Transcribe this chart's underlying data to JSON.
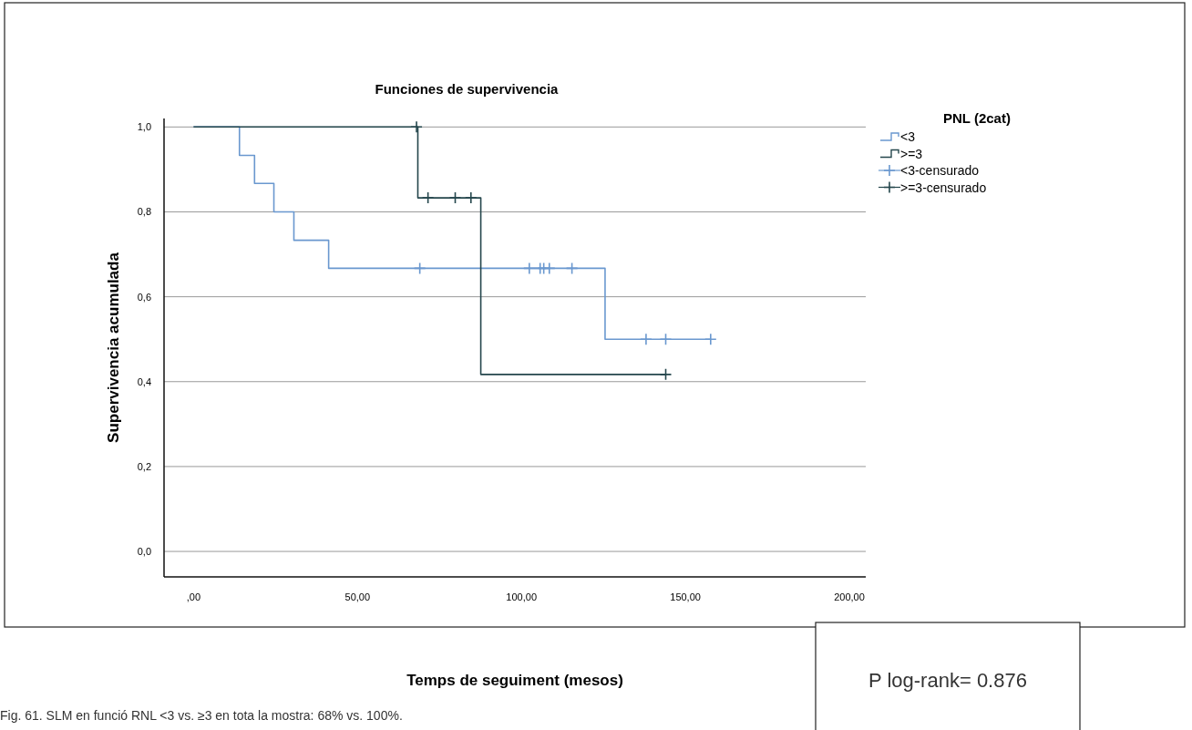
{
  "chart_data": {
    "type": "step",
    "title": "Funciones de supervivencia",
    "xlabel": "Temps de seguiment (mesos)",
    "ylabel": "Supervivencia acumulada",
    "legend_title": "PNL (2cat)",
    "annotations": [
      "Fig. 61. SLM en funció RNL <3 vs. ≥3 en tota la mostra: 68% vs. 100%.",
      "P log-rank= 0.876"
    ],
    "xlim": [
      -9,
      205
    ],
    "ylim": [
      -0.06,
      1.02
    ],
    "xticks": [
      {
        "value": 0,
        "label": ",00"
      },
      {
        "value": 50,
        "label": "50,00"
      },
      {
        "value": 100,
        "label": "100,00"
      },
      {
        "value": 150,
        "label": "150,00"
      },
      {
        "value": 200,
        "label": "200,00"
      }
    ],
    "yticks": [
      {
        "value": 0,
        "label": "0,0"
      },
      {
        "value": 0.2,
        "label": "0,2"
      },
      {
        "value": 0.4,
        "label": "0,4"
      },
      {
        "value": 0.6,
        "label": "0,6"
      },
      {
        "value": 0.8,
        "label": "0,8"
      },
      {
        "value": 1,
        "label": "1,0"
      }
    ],
    "grid": "y",
    "legend": "top right",
    "series": [
      {
        "name": "<3",
        "color": "#6a98cf",
        "x": [
          0,
          14,
          18.6,
          24.5,
          30.6,
          41.2,
          125.5,
          157.7
        ],
        "values": [
          1,
          0.933,
          0.867,
          0.8,
          0.733,
          0.667,
          0.5,
          0.5
        ]
      },
      {
        "name": ">=3",
        "color": "#24464c",
        "x": [
          0,
          68.4,
          87.6,
          144
        ],
        "values": [
          1,
          0.833,
          0.417,
          0.417
        ]
      },
      {
        "name": "<3-censurado",
        "type": "scatter",
        "marker": "cross",
        "color": "#6a98cf",
        "x": [
          69,
          102.4,
          105.7,
          106.8,
          108.5,
          115.4,
          138,
          144,
          157.7
        ],
        "values": [
          0.667,
          0.667,
          0.667,
          0.667,
          0.667,
          0.667,
          0.5,
          0.5,
          0.5
        ]
      },
      {
        "name": ">=3-censurado",
        "type": "scatter",
        "marker": "cross",
        "color": "#24464c",
        "x": [
          68,
          71.5,
          79.8,
          84.6,
          144
        ],
        "values": [
          1,
          0.833,
          0.833,
          0.833,
          0.417
        ]
      }
    ]
  }
}
